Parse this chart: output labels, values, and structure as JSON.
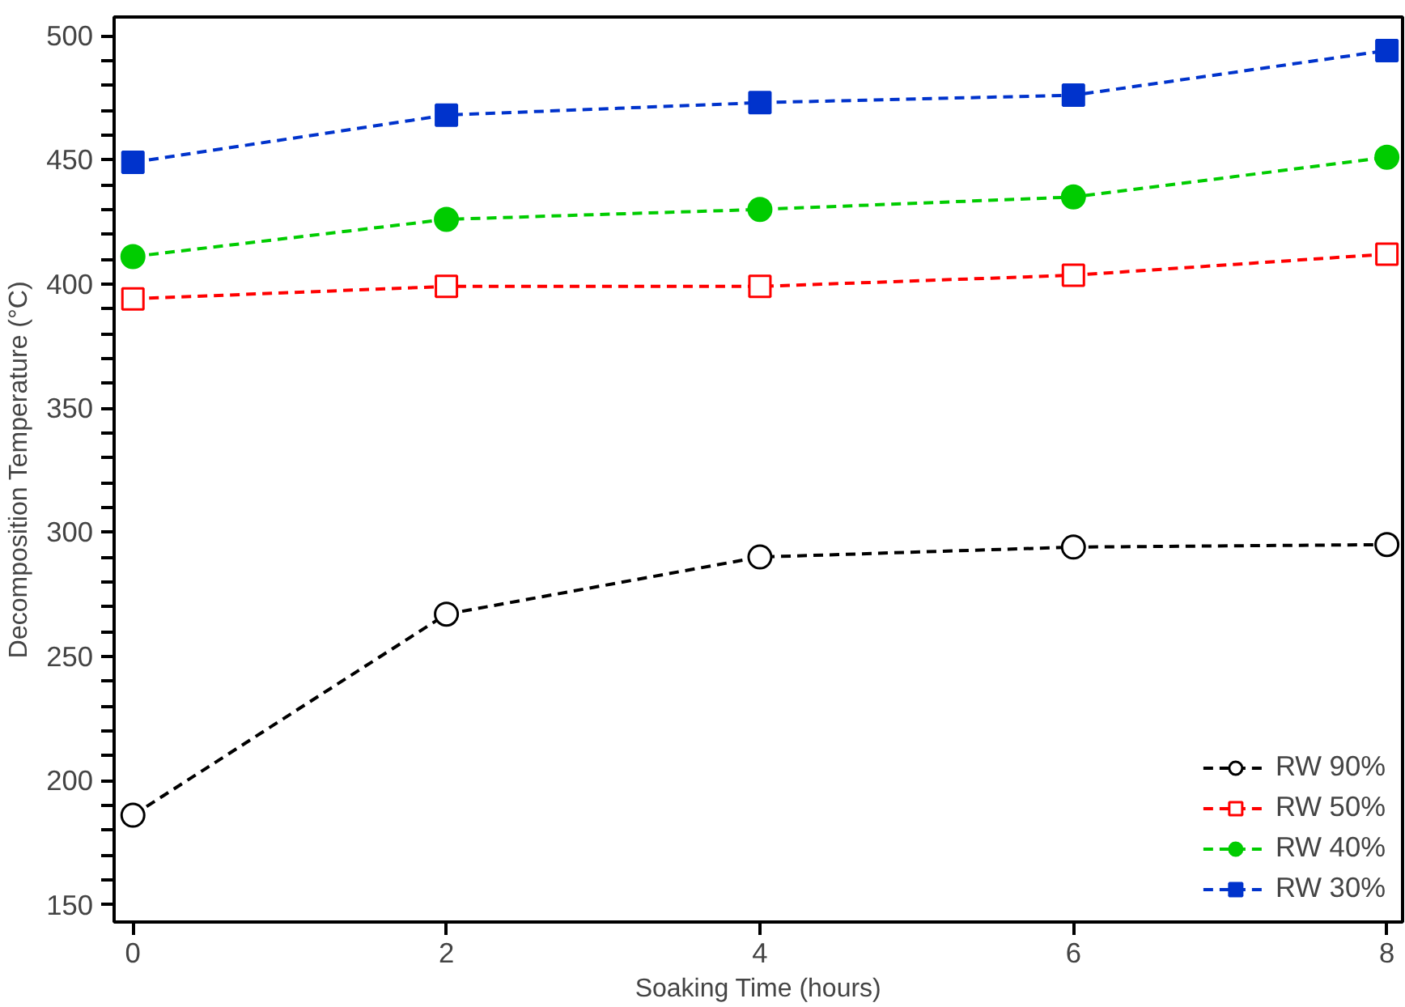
{
  "chart_data": {
    "type": "line",
    "xlabel": "Soaking Time (hours)",
    "ylabel": "Decomposition Temperature (°C)",
    "x": [
      0,
      2,
      4,
      6,
      8
    ],
    "series": [
      {
        "name": "RW 90%",
        "color": "#000000",
        "marker": "circle",
        "values": [
          186,
          267,
          290,
          294,
          295
        ]
      },
      {
        "name": "RW 50%",
        "color": "#ff0000",
        "marker": "square",
        "values": [
          394,
          399,
          399,
          403.5,
          412
        ]
      },
      {
        "name": "RW 40%",
        "color": "#00cc00",
        "marker": "circle",
        "values": [
          411,
          426,
          430,
          435,
          451
        ]
      },
      {
        "name": "RW 30%",
        "color": "#0033cc",
        "marker": "square",
        "values": [
          449,
          468,
          473,
          476,
          494
        ]
      }
    ],
    "xlim": [
      -0.12,
      8.1
    ],
    "xticks": [
      0,
      2,
      4,
      6,
      8
    ],
    "ylim": [
      143,
      507.5
    ],
    "yticks": [
      150,
      {
        "value": 160,
        "label": null
      },
      {
        "value": 170,
        "label": null
      },
      {
        "value": 180,
        "label": null
      },
      {
        "value": 190,
        "label": null
      },
      200,
      {
        "value": 210,
        "label": null
      },
      {
        "value": 220,
        "label": null
      },
      {
        "value": 230,
        "label": null
      },
      {
        "value": 240,
        "label": null
      },
      250,
      {
        "value": 260,
        "label": null
      },
      {
        "value": 270,
        "label": null
      },
      {
        "value": 280,
        "label": null
      },
      {
        "value": 290,
        "label": null
      },
      300,
      {
        "value": 310,
        "label": null
      },
      {
        "value": 320,
        "label": null
      },
      {
        "value": 330,
        "label": null
      },
      {
        "value": 340,
        "label": null
      },
      350,
      {
        "value": 360,
        "label": null
      },
      {
        "value": 370,
        "label": null
      },
      {
        "value": 380,
        "label": null
      },
      {
        "value": 390,
        "label": null
      },
      400,
      {
        "value": 410,
        "label": null
      },
      {
        "value": 420,
        "label": null
      },
      {
        "value": 430,
        "label": null
      },
      {
        "value": 440,
        "label": null
      },
      450,
      {
        "value": 460,
        "label": null
      },
      {
        "value": 470,
        "label": null
      },
      {
        "value": 480,
        "label": null
      },
      {
        "value": 490,
        "label": null
      },
      500
    ],
    "grid": false,
    "legend": "bottom right",
    "line_style": "dashed"
  }
}
